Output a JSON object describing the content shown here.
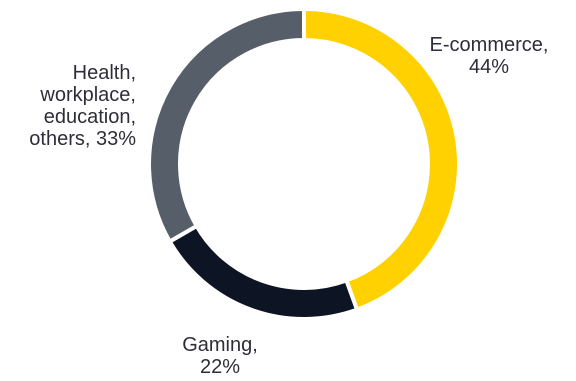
{
  "chart_data": {
    "type": "pie",
    "variant": "donut",
    "title": "",
    "categories": [
      "E-commerce",
      "Gaming",
      "Health, workplace, education, others"
    ],
    "values": [
      44,
      22,
      33
    ],
    "unit": "%",
    "colors": [
      "#ffd100",
      "#0d1423",
      "#565e69"
    ],
    "start_angle": "12 o'clock",
    "direction": "clockwise",
    "legend": "none",
    "data_labels": [
      {
        "lines": [
          "E-commerce,",
          "44%"
        ]
      },
      {
        "lines": [
          "Gaming,",
          "22%"
        ]
      },
      {
        "lines": [
          "Health,",
          "workplace,",
          "education,",
          "others, 33%"
        ]
      }
    ]
  }
}
